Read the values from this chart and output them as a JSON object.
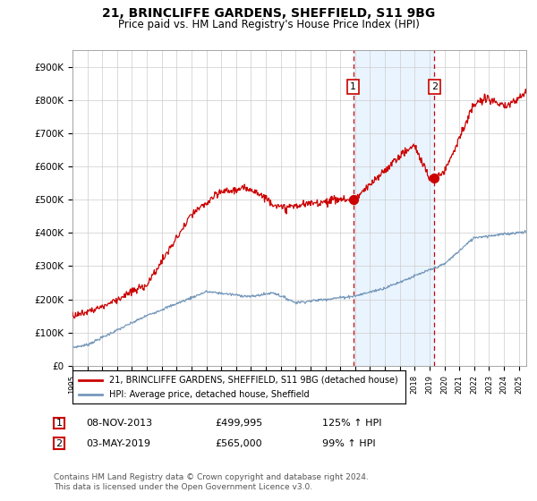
{
  "title": "21, BRINCLIFFE GARDENS, SHEFFIELD, S11 9BG",
  "subtitle": "Price paid vs. HM Land Registry's House Price Index (HPI)",
  "title_fontsize": 10,
  "subtitle_fontsize": 8.5,
  "ylim": [
    0,
    950000
  ],
  "yticks": [
    0,
    100000,
    200000,
    300000,
    400000,
    500000,
    600000,
    700000,
    800000,
    900000
  ],
  "ytick_labels": [
    "£0",
    "£100K",
    "£200K",
    "£300K",
    "£400K",
    "£500K",
    "£600K",
    "£700K",
    "£800K",
    "£900K"
  ],
  "sale1_price": 499995,
  "sale1_x": 2013.86,
  "sale2_price": 565000,
  "sale2_x": 2019.33,
  "red_line_color": "#cc0000",
  "blue_line_color": "#7799bb",
  "shade_color": "#ddeeff",
  "vline_color": "#cc0000",
  "background_color": "#ffffff",
  "legend_line1": "21, BRINCLIFFE GARDENS, SHEFFIELD, S11 9BG (detached house)",
  "legend_line2": "HPI: Average price, detached house, Sheffield",
  "footnote": "Contains HM Land Registry data © Crown copyright and database right 2024.\nThis data is licensed under the Open Government Licence v3.0.",
  "table_row1": [
    "1",
    "08-NOV-2013",
    "£499,995",
    "125% ↑ HPI"
  ],
  "table_row2": [
    "2",
    "03-MAY-2019",
    "£565,000",
    "99% ↑ HPI"
  ]
}
